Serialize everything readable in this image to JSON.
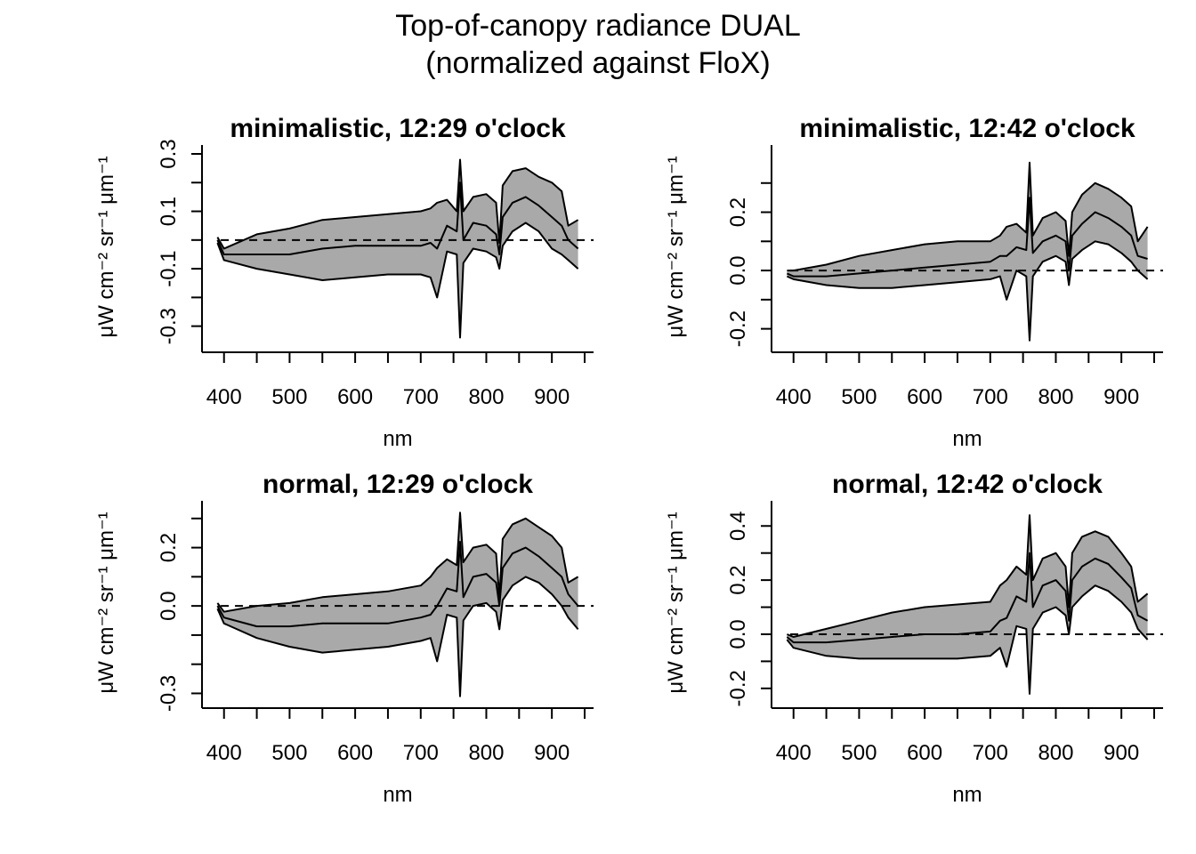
{
  "title_line1": "Top-of-canopy radiance DUAL",
  "title_line2": "(normalized against FloX)",
  "colors": {
    "band_fill": "#a9a9a9",
    "line": "#000000",
    "zero_line": "#000000"
  },
  "chart_data": [
    {
      "type": "area",
      "title": "minimalistic, 12:29 o'clock",
      "xlabel": "nm",
      "ylabel": "μW cm⁻² sr⁻¹ μm⁻¹",
      "xlim": [
        380,
        950
      ],
      "ylim": [
        -0.36,
        0.3
      ],
      "xticks": [
        400,
        500,
        600,
        700,
        800,
        900
      ],
      "xtick_minor": [
        450,
        550,
        650,
        750,
        850,
        950
      ],
      "yticks": [
        -0.3,
        -0.1,
        0.1,
        0.3
      ],
      "ytick_labels": [
        "-0.3",
        "-0.1",
        "0.1",
        "0.3"
      ],
      "ytick_minor": [
        -0.2,
        0.0,
        0.2
      ],
      "reference_line": 0,
      "series": [
        {
          "x": [
            390,
            400,
            450,
            500,
            550,
            600,
            650,
            700,
            715,
            725,
            740,
            755,
            760,
            765,
            780,
            800,
            815,
            820,
            825,
            840,
            860,
            880,
            900,
            915,
            925,
            940
          ],
          "values": [
            0.01,
            -0.03,
            0.02,
            0.04,
            0.07,
            0.08,
            0.09,
            0.1,
            0.11,
            0.13,
            0.14,
            0.1,
            0.28,
            0.1,
            0.15,
            0.16,
            0.13,
            -0.01,
            0.19,
            0.24,
            0.25,
            0.22,
            0.2,
            0.17,
            0.05,
            0.07
          ]
        },
        {
          "x": [
            390,
            400,
            450,
            500,
            550,
            600,
            650,
            700,
            715,
            725,
            740,
            755,
            760,
            765,
            780,
            800,
            815,
            820,
            825,
            840,
            860,
            880,
            900,
            915,
            925,
            940
          ],
          "values": [
            0.0,
            -0.05,
            -0.05,
            -0.05,
            -0.03,
            -0.02,
            -0.02,
            -0.02,
            -0.01,
            -0.03,
            0.05,
            0.03,
            0.2,
            0.0,
            0.06,
            0.05,
            0.02,
            -0.05,
            0.08,
            0.13,
            0.15,
            0.12,
            0.08,
            0.05,
            0.0,
            -0.03
          ]
        },
        {
          "x": [
            390,
            400,
            450,
            500,
            550,
            600,
            650,
            700,
            715,
            725,
            740,
            755,
            760,
            765,
            780,
            800,
            815,
            820,
            825,
            840,
            860,
            880,
            900,
            915,
            925,
            940
          ],
          "values": [
            -0.01,
            -0.07,
            -0.1,
            -0.12,
            -0.14,
            -0.13,
            -0.12,
            -0.12,
            -0.13,
            -0.2,
            -0.04,
            -0.05,
            -0.34,
            -0.08,
            -0.03,
            -0.04,
            -0.06,
            -0.1,
            -0.02,
            0.03,
            0.06,
            0.03,
            -0.03,
            -0.05,
            -0.07,
            -0.1
          ]
        }
      ]
    },
    {
      "type": "area",
      "title": "minimalistic, 12:42 o'clock",
      "xlabel": "nm",
      "ylabel": "μW cm⁻² sr⁻¹ μm⁻¹",
      "xlim": [
        380,
        950
      ],
      "ylim": [
        -0.25,
        0.4
      ],
      "xticks": [
        400,
        500,
        600,
        700,
        800,
        900
      ],
      "xtick_minor": [
        450,
        550,
        650,
        750,
        850,
        950
      ],
      "yticks": [
        -0.2,
        0.0,
        0.2
      ],
      "ytick_labels": [
        "-0.2",
        "0.0",
        "0.2"
      ],
      "ytick_minor": [
        -0.1,
        0.1,
        0.3
      ],
      "reference_line": 0,
      "series": [
        {
          "x": [
            390,
            400,
            450,
            500,
            550,
            600,
            650,
            700,
            715,
            725,
            740,
            755,
            760,
            765,
            780,
            800,
            815,
            820,
            825,
            840,
            860,
            880,
            900,
            915,
            925,
            940
          ],
          "values": [
            0.0,
            0.0,
            0.02,
            0.05,
            0.07,
            0.09,
            0.1,
            0.1,
            0.12,
            0.15,
            0.16,
            0.13,
            0.37,
            0.12,
            0.18,
            0.2,
            0.17,
            0.05,
            0.2,
            0.26,
            0.3,
            0.28,
            0.25,
            0.22,
            0.1,
            0.15
          ]
        },
        {
          "x": [
            390,
            400,
            450,
            500,
            550,
            600,
            650,
            700,
            715,
            725,
            740,
            755,
            760,
            765,
            780,
            800,
            815,
            820,
            825,
            840,
            860,
            880,
            900,
            915,
            925,
            940
          ],
          "values": [
            -0.01,
            -0.02,
            -0.02,
            -0.01,
            0.0,
            0.01,
            0.02,
            0.03,
            0.05,
            0.05,
            0.08,
            0.07,
            0.25,
            0.06,
            0.1,
            0.12,
            0.1,
            0.0,
            0.12,
            0.16,
            0.2,
            0.18,
            0.15,
            0.12,
            0.05,
            0.04
          ]
        },
        {
          "x": [
            390,
            400,
            450,
            500,
            550,
            600,
            650,
            700,
            715,
            725,
            740,
            755,
            760,
            765,
            780,
            800,
            815,
            820,
            825,
            840,
            860,
            880,
            900,
            915,
            925,
            940
          ],
          "values": [
            -0.02,
            -0.03,
            -0.05,
            -0.06,
            -0.06,
            -0.05,
            -0.04,
            -0.03,
            -0.02,
            -0.1,
            0.0,
            -0.02,
            -0.24,
            -0.02,
            0.03,
            0.05,
            0.03,
            -0.05,
            0.04,
            0.07,
            0.1,
            0.09,
            0.06,
            0.03,
            0.0,
            -0.03
          ]
        }
      ]
    },
    {
      "type": "area",
      "title": "normal, 12:29 o'clock",
      "xlabel": "nm",
      "ylabel": "μW cm⁻² sr⁻¹ μm⁻¹",
      "xlim": [
        380,
        950
      ],
      "ylim": [
        -0.32,
        0.33
      ],
      "xticks": [
        400,
        500,
        600,
        700,
        800,
        900
      ],
      "xtick_minor": [
        450,
        550,
        650,
        750,
        850,
        950
      ],
      "yticks": [
        -0.3,
        0.0,
        0.2
      ],
      "ytick_labels": [
        "-0.3",
        "0.0",
        "0.2"
      ],
      "ytick_minor": [
        -0.2,
        -0.1,
        0.1,
        0.3
      ],
      "reference_line": 0,
      "series": [
        {
          "x": [
            390,
            400,
            450,
            500,
            550,
            600,
            650,
            700,
            715,
            725,
            740,
            755,
            760,
            765,
            780,
            800,
            815,
            820,
            825,
            840,
            860,
            880,
            900,
            915,
            925,
            940
          ],
          "values": [
            0.01,
            -0.02,
            0.0,
            0.01,
            0.03,
            0.04,
            0.05,
            0.07,
            0.1,
            0.13,
            0.16,
            0.14,
            0.32,
            0.15,
            0.2,
            0.21,
            0.18,
            0.03,
            0.23,
            0.28,
            0.3,
            0.27,
            0.24,
            0.2,
            0.08,
            0.1
          ]
        },
        {
          "x": [
            390,
            400,
            450,
            500,
            550,
            600,
            650,
            700,
            715,
            725,
            740,
            755,
            760,
            765,
            780,
            800,
            815,
            820,
            825,
            840,
            860,
            880,
            900,
            915,
            925,
            940
          ],
          "values": [
            0.0,
            -0.04,
            -0.07,
            -0.07,
            -0.06,
            -0.06,
            -0.06,
            -0.04,
            -0.03,
            0.0,
            0.06,
            0.05,
            0.22,
            0.03,
            0.1,
            0.11,
            0.08,
            0.0,
            0.13,
            0.18,
            0.2,
            0.17,
            0.13,
            0.1,
            0.04,
            0.0
          ]
        },
        {
          "x": [
            390,
            400,
            450,
            500,
            550,
            600,
            650,
            700,
            715,
            725,
            740,
            755,
            760,
            765,
            780,
            800,
            815,
            820,
            825,
            840,
            860,
            880,
            900,
            915,
            925,
            940
          ],
          "values": [
            -0.01,
            -0.06,
            -0.11,
            -0.14,
            -0.16,
            -0.15,
            -0.14,
            -0.12,
            -0.11,
            -0.19,
            -0.03,
            -0.04,
            -0.31,
            -0.05,
            0.0,
            0.01,
            -0.02,
            -0.08,
            0.02,
            0.07,
            0.1,
            0.08,
            0.04,
            0.0,
            -0.04,
            -0.08
          ]
        }
      ]
    },
    {
      "type": "area",
      "title": "normal, 12:42 o'clock",
      "xlabel": "nm",
      "ylabel": "μW cm⁻² sr⁻¹ μm⁻¹",
      "xlim": [
        380,
        950
      ],
      "ylim": [
        -0.24,
        0.46
      ],
      "xticks": [
        400,
        500,
        600,
        700,
        800,
        900
      ],
      "xtick_minor": [
        450,
        550,
        650,
        750,
        850,
        950
      ],
      "yticks": [
        -0.2,
        0.0,
        0.2,
        0.4
      ],
      "ytick_labels": [
        "-0.2",
        "0.0",
        "0.2",
        "0.4"
      ],
      "ytick_minor": [
        -0.1,
        0.1,
        0.3
      ],
      "reference_line": 0,
      "series": [
        {
          "x": [
            390,
            400,
            450,
            500,
            550,
            600,
            650,
            700,
            715,
            725,
            740,
            755,
            760,
            765,
            780,
            800,
            815,
            820,
            825,
            840,
            860,
            880,
            900,
            915,
            925,
            940
          ],
          "values": [
            0.0,
            -0.01,
            0.02,
            0.05,
            0.08,
            0.1,
            0.11,
            0.12,
            0.18,
            0.2,
            0.25,
            0.22,
            0.44,
            0.2,
            0.28,
            0.3,
            0.25,
            0.1,
            0.3,
            0.36,
            0.38,
            0.36,
            0.3,
            0.25,
            0.12,
            0.15
          ]
        },
        {
          "x": [
            390,
            400,
            450,
            500,
            550,
            600,
            650,
            700,
            715,
            725,
            740,
            755,
            760,
            765,
            780,
            800,
            815,
            820,
            825,
            840,
            860,
            880,
            900,
            915,
            925,
            940
          ],
          "values": [
            -0.01,
            -0.03,
            -0.03,
            -0.02,
            -0.01,
            0.0,
            0.0,
            0.01,
            0.05,
            0.06,
            0.14,
            0.12,
            0.3,
            0.1,
            0.18,
            0.2,
            0.16,
            0.05,
            0.2,
            0.25,
            0.28,
            0.26,
            0.21,
            0.17,
            0.07,
            0.05
          ]
        },
        {
          "x": [
            390,
            400,
            450,
            500,
            550,
            600,
            650,
            700,
            715,
            725,
            740,
            755,
            760,
            765,
            780,
            800,
            815,
            820,
            825,
            840,
            860,
            880,
            900,
            915,
            925,
            940
          ],
          "values": [
            -0.02,
            -0.05,
            -0.08,
            -0.09,
            -0.09,
            -0.09,
            -0.09,
            -0.08,
            -0.05,
            -0.12,
            0.03,
            0.02,
            -0.22,
            0.02,
            0.08,
            0.1,
            0.07,
            0.0,
            0.1,
            0.14,
            0.18,
            0.16,
            0.12,
            0.08,
            0.02,
            -0.02
          ]
        }
      ]
    }
  ]
}
